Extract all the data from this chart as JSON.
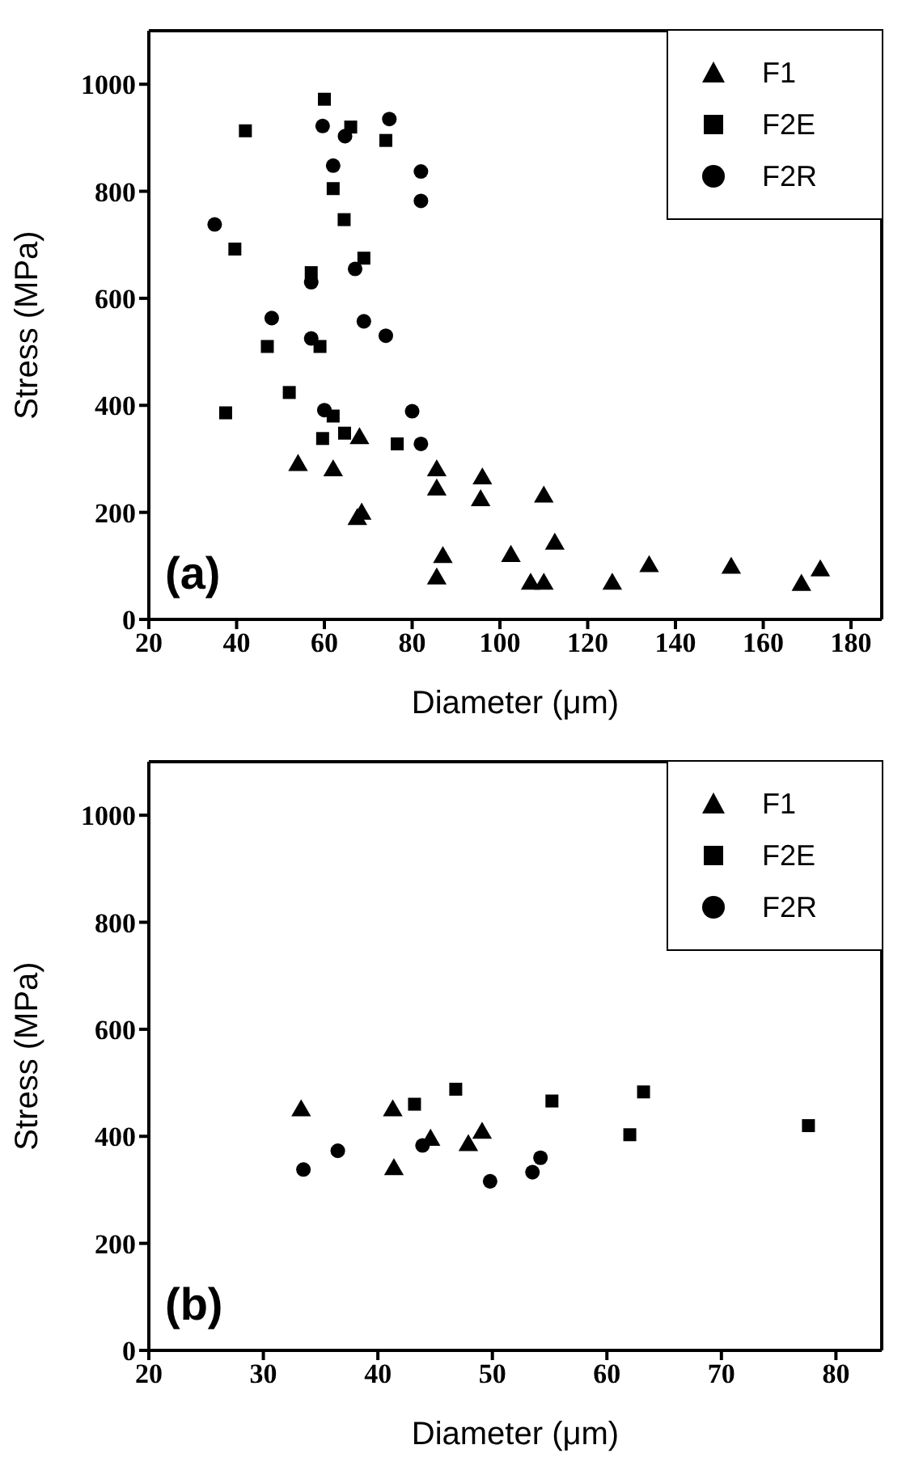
{
  "chart_data": [
    {
      "type": "scatter",
      "xlabel": "Diameter (μm)",
      "ylabel": "Stress (MPa)",
      "annotations": [
        "(a)"
      ],
      "xlim": [
        20,
        187
      ],
      "xticks": [
        20,
        40,
        60,
        80,
        100,
        120,
        140,
        160,
        180
      ],
      "ylim": [
        0,
        1100
      ],
      "yticks": [
        0,
        200,
        400,
        600,
        800,
        1000
      ],
      "legend": "top right",
      "series": [
        {
          "name": "F1",
          "color": "#000000",
          "marker": "triangle",
          "x": [
            54,
            62,
            68.5,
            67.5,
            68,
            85.6,
            85.6,
            96,
            95.6,
            110,
            112.5,
            102.5,
            87,
            85.6,
            107,
            110,
            125.6,
            134,
            152.7,
            168.7,
            173
          ],
          "values": [
            288,
            278,
            197,
            187,
            338,
            278,
            242,
            263,
            222,
            229,
            141,
            118,
            116,
            76,
            66,
            66,
            66,
            99,
            96,
            64,
            91
          ]
        },
        {
          "name": "F2E",
          "color": "#000000",
          "marker": "square",
          "x": [
            60,
            42,
            66,
            74,
            62,
            64.5,
            39.6,
            69,
            57,
            47,
            59,
            52,
            37.5,
            62,
            59.6,
            64.6,
            76.6
          ],
          "values": [
            972,
            913,
            920,
            895,
            805,
            747,
            692,
            675,
            648,
            510,
            510,
            424,
            386,
            380,
            338,
            348,
            328
          ]
        },
        {
          "name": "F2R",
          "color": "#000000",
          "marker": "circle",
          "x": [
            59.6,
            64.7,
            74.8,
            62,
            82,
            82,
            35,
            67,
            57,
            48,
            69,
            74,
            57,
            60,
            80,
            82
          ],
          "values": [
            922,
            903,
            935,
            848,
            837,
            782,
            738,
            655,
            630,
            563,
            557,
            530,
            525,
            391,
            389,
            328
          ]
        }
      ]
    },
    {
      "type": "scatter",
      "xlabel": "Diameter (μm)",
      "ylabel": "Stress (MPa)",
      "annotations": [
        "(b)"
      ],
      "xlim": [
        20,
        84
      ],
      "xticks": [
        20,
        30,
        40,
        50,
        60,
        70,
        80
      ],
      "ylim": [
        0,
        1100
      ],
      "yticks": [
        0,
        200,
        400,
        600,
        800,
        1000
      ],
      "legend": "top right",
      "series": [
        {
          "name": "F1",
          "color": "#000000",
          "marker": "triangle",
          "x": [
            33.3,
            41.3,
            41.4,
            44.6,
            47.9,
            49.1
          ],
          "values": [
            448,
            448,
            338,
            393,
            383,
            406
          ]
        },
        {
          "name": "F2E",
          "color": "#000000",
          "marker": "square",
          "x": [
            43.2,
            46.8,
            55.2,
            63.2,
            62,
            77.6
          ],
          "values": [
            460,
            488,
            466,
            483,
            403,
            420
          ]
        },
        {
          "name": "F2R",
          "color": "#000000",
          "marker": "circle",
          "x": [
            33.5,
            36.5,
            43.9,
            49.8,
            53.5,
            54.2
          ],
          "values": [
            338,
            373,
            383,
            316,
            333,
            360
          ]
        }
      ]
    }
  ]
}
